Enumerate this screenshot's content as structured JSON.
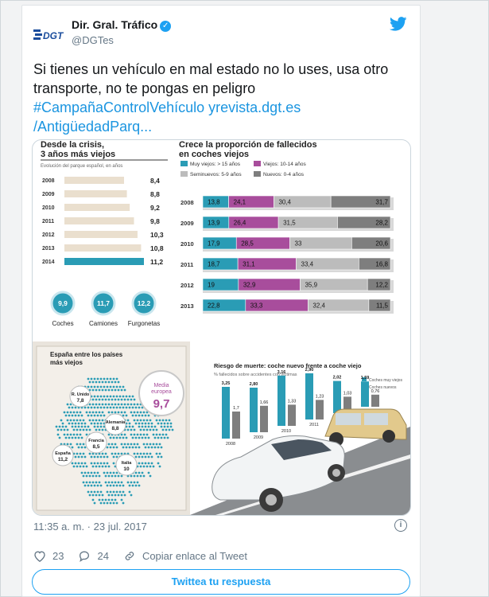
{
  "tweet": {
    "author_name": "Dir. Gral. Tráfico",
    "handle": "@DGTes",
    "logo_text": "DGT",
    "text_line1": "Si tienes un vehículo en mal estado no lo uses, usa otro",
    "text_line2": "transporte, no te pongas en peligro",
    "hashtag1": "#CampañaControlVehículo",
    "link1": "yrevista.dgt.es",
    "link2": "/AntigüedadParq...",
    "timestamp": "11:35 a. m. · 23 jul. 2017",
    "likes": "23",
    "replies": "24",
    "copy_link_label": "Copiar enlace al Tweet",
    "reply_button": "Twittea tu respuesta",
    "icons": [
      "dgt-logo",
      "verified-badge",
      "twitter-bird",
      "info-icon",
      "heart-icon",
      "reply-icon",
      "link-icon"
    ]
  },
  "infographic": {
    "left_title_1": "Desde la crisis,",
    "left_title_2": "3 años más viejos",
    "left_subtitle": "Evolución del parque español, en años",
    "years_bars": [
      {
        "year": "2008",
        "value": "8,4"
      },
      {
        "year": "2009",
        "value": "8,8"
      },
      {
        "year": "2010",
        "value": "9,2"
      },
      {
        "year": "2011",
        "value": "9,8"
      },
      {
        "year": "2012",
        "value": "10,3"
      },
      {
        "year": "2013",
        "value": "10,8"
      },
      {
        "year": "2014",
        "value": "11,2"
      }
    ],
    "drops": [
      {
        "value": "9,9",
        "label": "Coches"
      },
      {
        "value": "11,7",
        "label": "Camiones"
      },
      {
        "value": "12,2",
        "label": "Furgonetas"
      }
    ],
    "right_title_1": "Crece la proporción de fallecidos",
    "right_title_2": "en coches viejos",
    "legend": [
      {
        "label": "Muy viejos: > 15 años",
        "color": "#2a9cb5"
      },
      {
        "label": "Viejos: 10-14 años",
        "color": "#a84d9c"
      },
      {
        "label": "Seminuevos: 5-9 años",
        "color": "#bcbcbc"
      },
      {
        "label": "Nuevos: 0-4 años",
        "color": "#7e7e7e"
      }
    ],
    "stacked_rows": [
      {
        "year": "2008",
        "values": [
          "13,8",
          "24,1",
          "30,4",
          "31,7"
        ],
        "nums": [
          13.8,
          24.1,
          30.4,
          31.7
        ]
      },
      {
        "year": "2009",
        "values": [
          "13,9",
          "26,4",
          "31,5",
          "28,2"
        ],
        "nums": [
          13.9,
          26.4,
          31.5,
          28.2
        ]
      },
      {
        "year": "2010",
        "values": [
          "17,9",
          "28,5",
          "33",
          "20,6"
        ],
        "nums": [
          17.9,
          28.5,
          33,
          20.6
        ]
      },
      {
        "year": "2011",
        "values": [
          "18,7",
          "31,1",
          "33,4",
          "16,8"
        ],
        "nums": [
          18.7,
          31.1,
          33.4,
          16.8
        ]
      },
      {
        "year": "2012",
        "values": [
          "19",
          "32,9",
          "35,9",
          "12,2"
        ],
        "nums": [
          19,
          32.9,
          35.9,
          12.2
        ]
      },
      {
        "year": "2013",
        "values": [
          "22,8",
          "33,3",
          "32,4",
          "11,5"
        ],
        "nums": [
          22.8,
          33.3,
          32.4,
          11.5
        ]
      }
    ],
    "map_title_1": "España entre los países",
    "map_title_2": "más viejos",
    "map_pins": [
      {
        "country": "R. Unido",
        "value": "7,8"
      },
      {
        "country": "Alemania",
        "value": "8,8"
      },
      {
        "country": "Francia",
        "value": "8,5"
      },
      {
        "country": "España",
        "value": "11,2"
      },
      {
        "country": "Italia",
        "value": "10"
      }
    ],
    "media_europea_label_1": "Media",
    "media_europea_label_2": "europea",
    "media_europea_value": "9,7",
    "risk_title": "Riesgo de muerte: coche nuevo frente a coche viejo",
    "risk_subtitle": "% fallecidos sobre accidentes con víctimas",
    "risk_legend": [
      "Coches muy viejos",
      "Coches nuevos"
    ],
    "risk_pairs": [
      {
        "year": "2008",
        "old": "3,25",
        "new": "1,7",
        "old_n": 3.25,
        "new_n": 1.7
      },
      {
        "year": "2009",
        "old": "2,80",
        "new": "1,66",
        "old_n": 2.8,
        "new_n": 1.66
      },
      {
        "year": "2010",
        "old": "3,16",
        "new": "1,33",
        "old_n": 3.16,
        "new_n": 1.33
      },
      {
        "year": "2011",
        "old": "2,90",
        "new": "1,23",
        "old_n": 2.9,
        "new_n": 1.23
      },
      {
        "year": "2012",
        "old": "2,02",
        "new": "1,03",
        "old_n": 2.02,
        "new_n": 1.03
      },
      {
        "year": "2013",
        "old": "1,59",
        "new": "0,76",
        "old_n": 1.59,
        "new_n": 0.76
      }
    ]
  }
}
